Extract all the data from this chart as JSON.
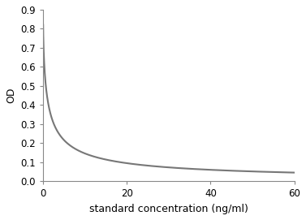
{
  "xlabel": "standard concentration (ng/ml)",
  "ylabel": "OD",
  "xlim": [
    0,
    60
  ],
  "ylim": [
    0,
    0.9
  ],
  "xticks": [
    0,
    20,
    40,
    60
  ],
  "yticks": [
    0,
    0.1,
    0.2,
    0.3,
    0.4,
    0.5,
    0.6,
    0.7,
    0.8,
    0.9
  ],
  "line_color": "#777777",
  "line_width": 1.5,
  "background_color": "#ffffff",
  "curve_A": 0.82,
  "curve_D": 0.0,
  "curve_EC50": 1.2,
  "curve_Hill": 0.72,
  "xlabel_fontsize": 9,
  "ylabel_fontsize": 9,
  "tick_fontsize": 8.5
}
